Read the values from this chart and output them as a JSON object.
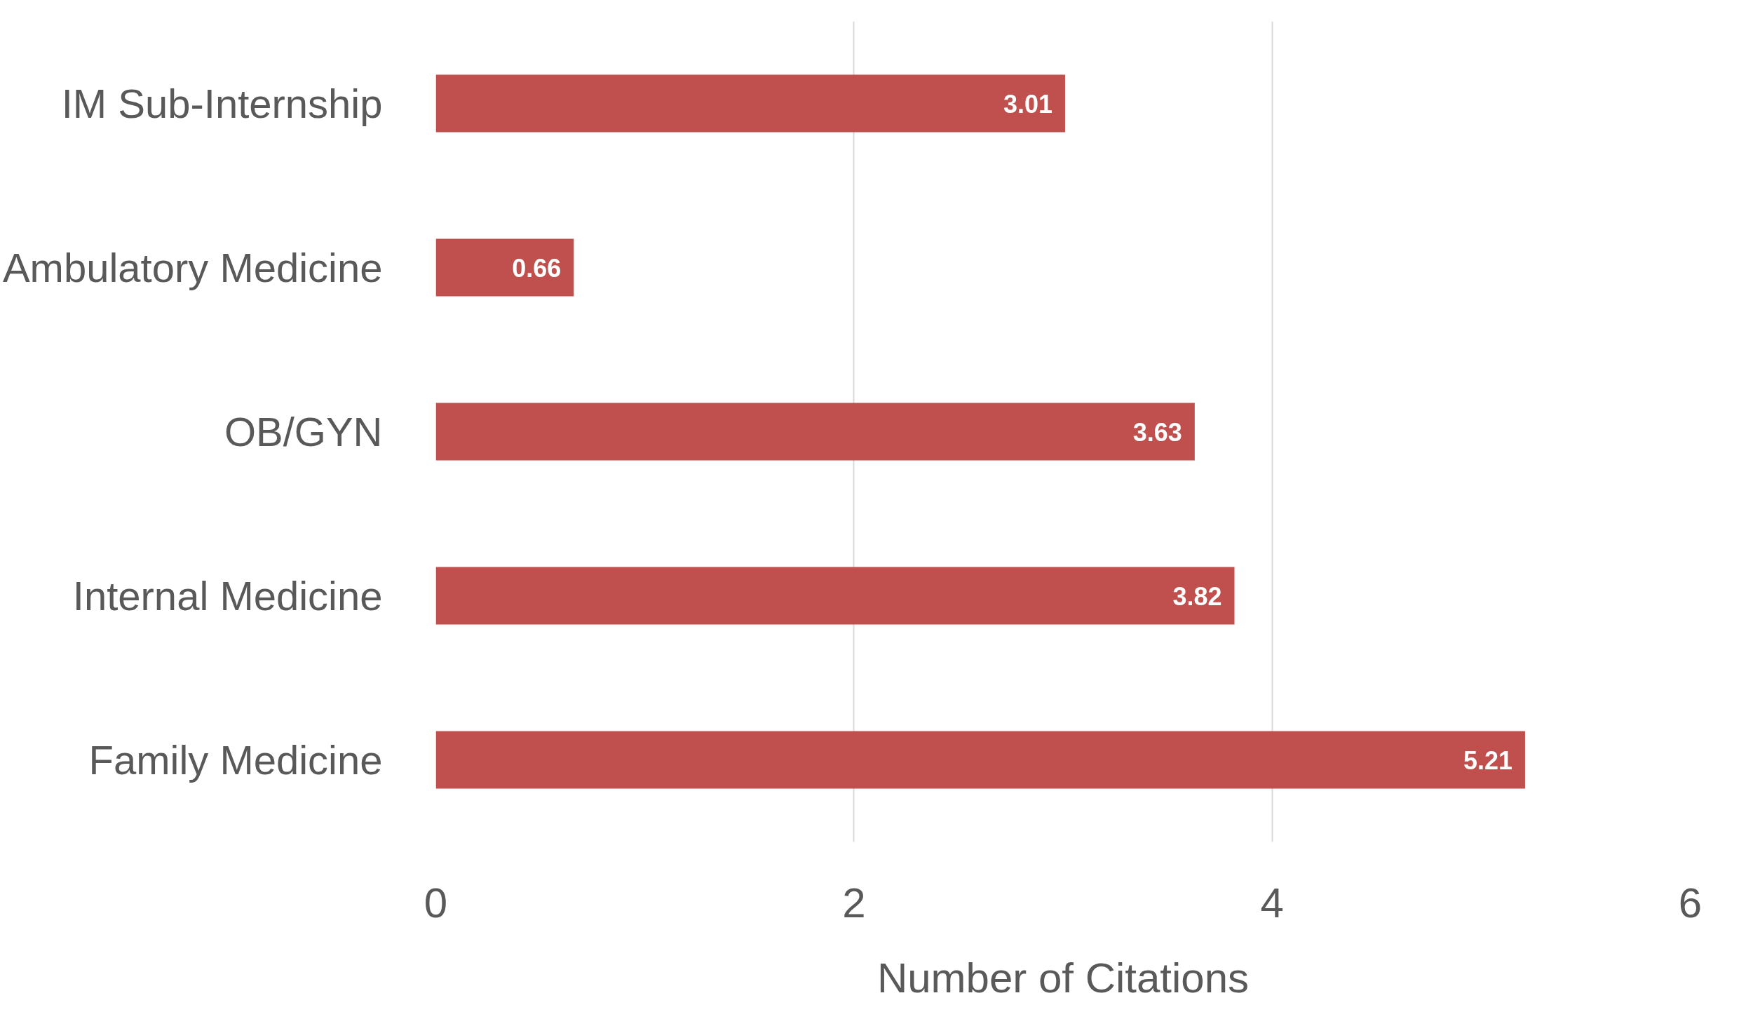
{
  "chart_data": {
    "type": "bar",
    "orientation": "horizontal",
    "xlabel": "Number of Citations",
    "categories": [
      "IM Sub-Internship",
      "Ambulatory Medicine",
      "OB/GYN",
      "Internal Medicine",
      "Family Medicine"
    ],
    "values": [
      3.01,
      0.66,
      3.63,
      3.82,
      5.21
    ],
    "color": "#c0504d",
    "xlim": [
      0,
      6
    ],
    "xticks": [
      0,
      2,
      4,
      6
    ],
    "grid": "x",
    "data_labels": true
  }
}
